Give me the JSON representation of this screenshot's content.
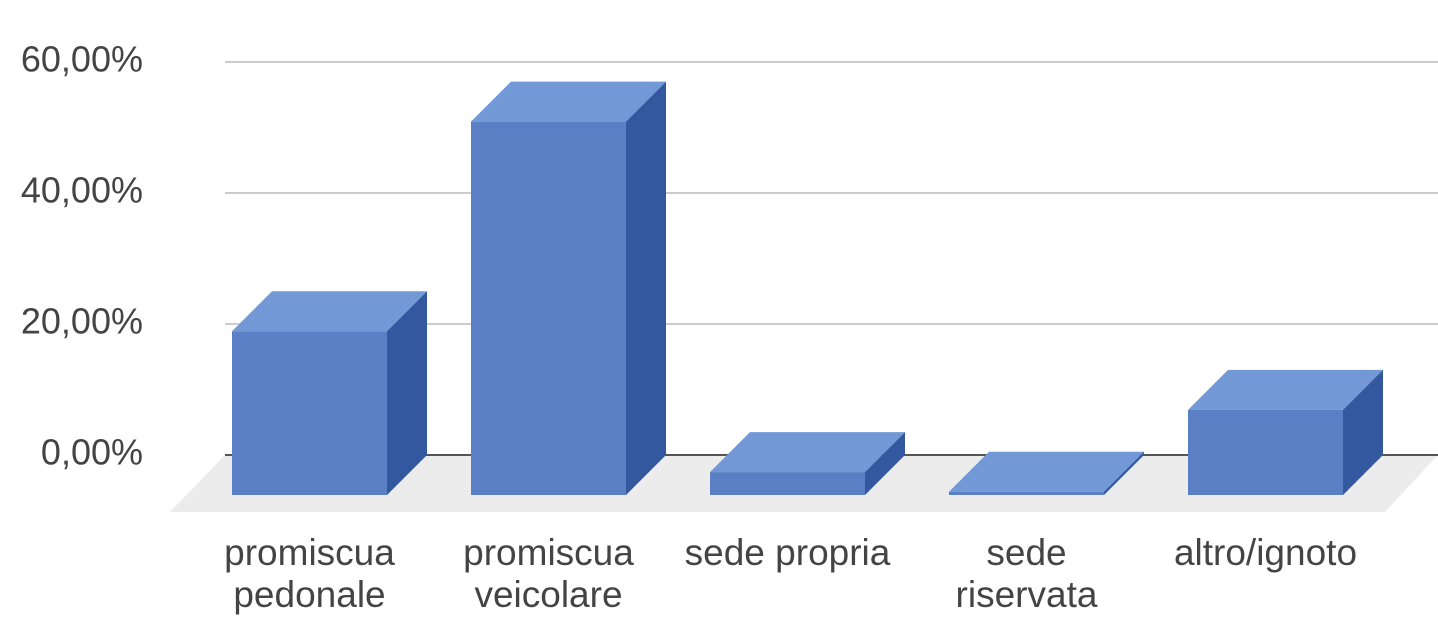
{
  "chart_data": {
    "type": "bar3d",
    "categories": [
      "promiscua pedonale",
      "promiscua veicolare",
      "sede propria",
      "sede riservata",
      "altro/ignoto"
    ],
    "values": [
      25,
      57,
      3.5,
      0.5,
      13
    ],
    "color": "#5b7fc4",
    "ylim": [
      0,
      60
    ],
    "yticks": [
      {
        "value": 0,
        "label": "0,00%"
      },
      {
        "value": 20,
        "label": "20,00%"
      },
      {
        "value": 40,
        "label": "40,00%"
      },
      {
        "value": 60,
        "label": "60,00%"
      }
    ],
    "grid": true
  }
}
